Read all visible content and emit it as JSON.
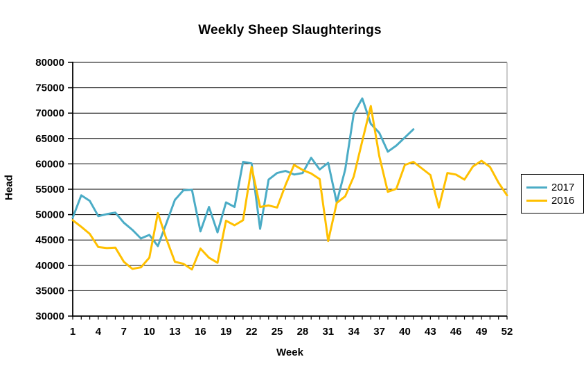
{
  "title": "Weekly Sheep Slaughterings",
  "x_axis": {
    "label": "Week",
    "tick_labels": [
      1,
      4,
      7,
      10,
      13,
      16,
      19,
      22,
      25,
      28,
      31,
      34,
      37,
      40,
      43,
      46,
      49,
      52
    ]
  },
  "y_axis": {
    "label": "Head",
    "ticks": [
      30000,
      35000,
      40000,
      45000,
      50000,
      55000,
      60000,
      65000,
      70000,
      75000,
      80000
    ]
  },
  "legend": {
    "entries": [
      {
        "label": "2017",
        "color": "#4BACC6"
      },
      {
        "label": "2016",
        "color": "#FFC000"
      }
    ]
  },
  "colors": {
    "gridline": "#000000",
    "axis": "#000000",
    "plot_right_border": "#A6A6A6",
    "text": "#000000"
  },
  "chart_data": {
    "type": "line",
    "title": "Weekly Sheep Slaughterings",
    "xlabel": "Week",
    "ylabel": "Head",
    "xlim": [
      1,
      52
    ],
    "ylim": [
      30000,
      80000
    ],
    "grid": true,
    "legend_position": "right",
    "x_ticks_every_week": true,
    "x_labeled_ticks": [
      1,
      4,
      7,
      10,
      13,
      16,
      19,
      22,
      25,
      28,
      31,
      34,
      37,
      40,
      43,
      46,
      49,
      52
    ],
    "series": [
      {
        "name": "2017",
        "color": "#4BACC6",
        "start_week": 1,
        "values": [
          49400,
          53800,
          52700,
          49700,
          50100,
          50400,
          48400,
          47000,
          45300,
          46000,
          43800,
          48300,
          52900,
          54800,
          54900,
          46700,
          51500,
          46500,
          52400,
          51500,
          60400,
          60100,
          47200,
          56900,
          58200,
          58600,
          57900,
          58200,
          61200,
          58900,
          60200,
          52400,
          58900,
          69900,
          72900,
          67900,
          66100,
          62400,
          63600,
          65200,
          66800
        ]
      },
      {
        "name": "2016",
        "color": "#FFC000",
        "start_week": 1,
        "values": [
          48900,
          47600,
          46200,
          43600,
          43400,
          43500,
          40700,
          39300,
          39600,
          41500,
          50300,
          45200,
          40700,
          40300,
          39200,
          43300,
          41500,
          40500,
          48800,
          47900,
          48900,
          59400,
          51500,
          51800,
          51400,
          55900,
          59800,
          58800,
          58100,
          57000,
          44800,
          52300,
          53600,
          57500,
          64500,
          71400,
          61500,
          54500,
          55100,
          59800,
          60400,
          59100,
          57800,
          51400,
          58200,
          57900,
          56900,
          59500,
          60600,
          59400,
          56300,
          53800
        ]
      }
    ]
  }
}
